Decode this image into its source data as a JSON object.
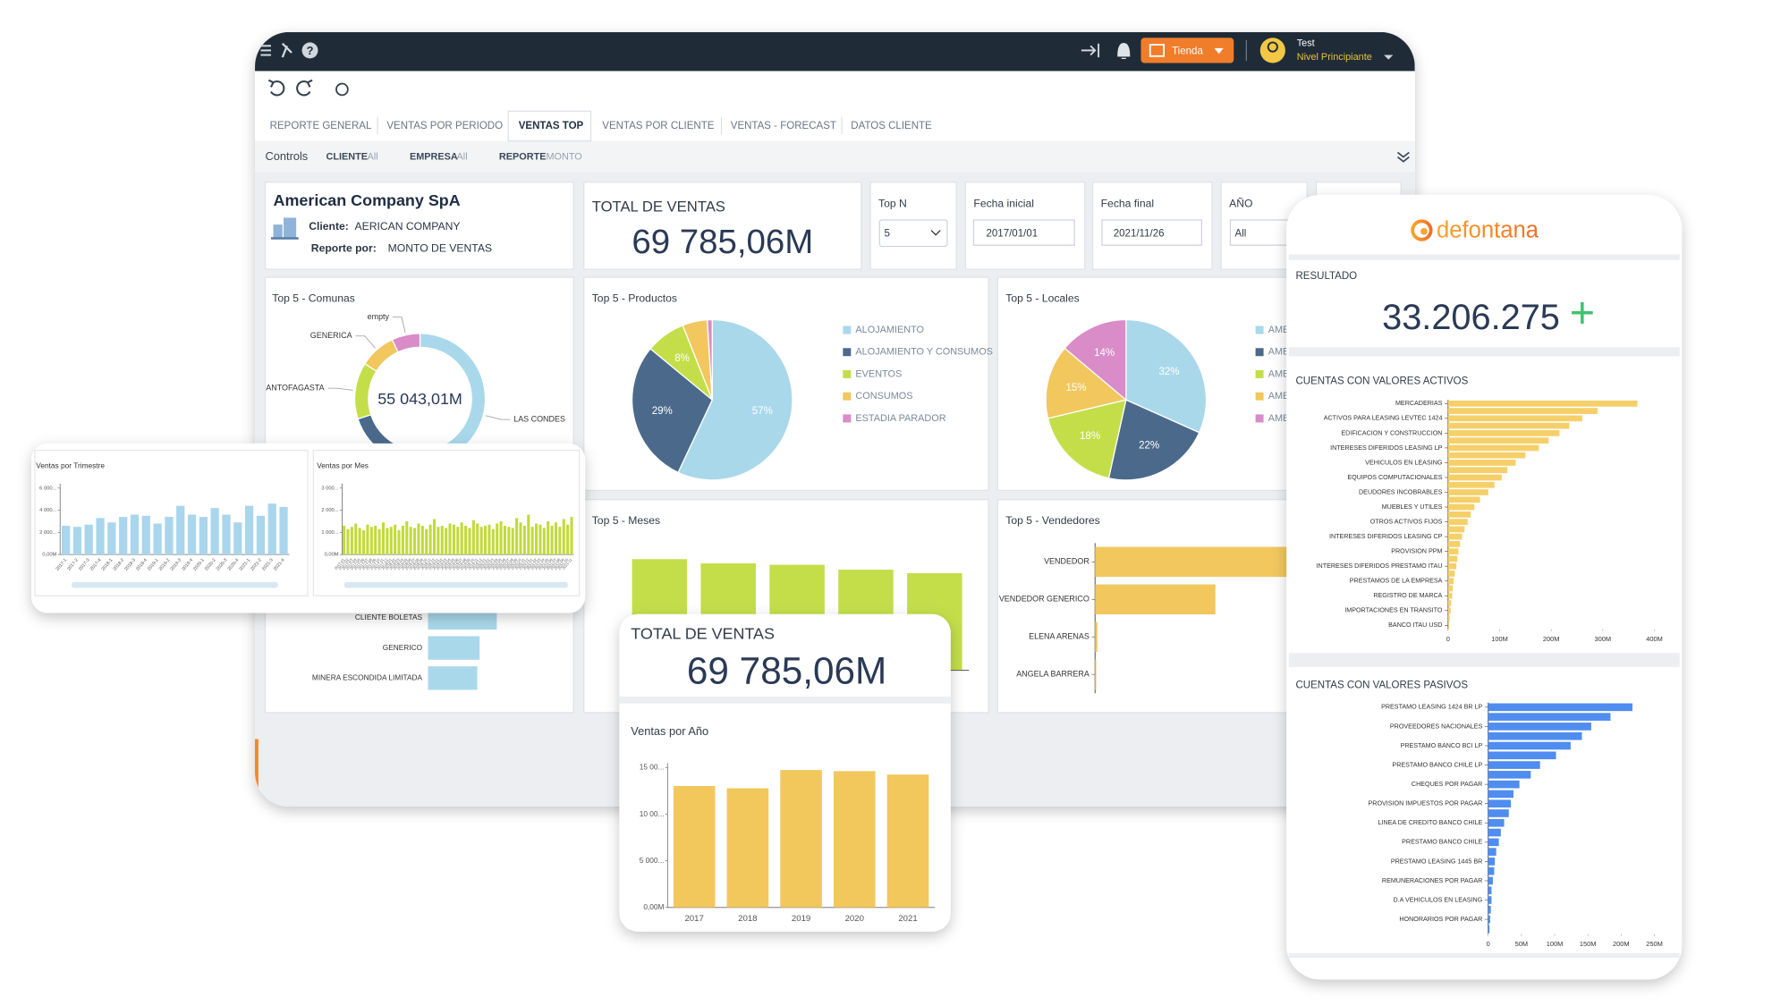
{
  "header": {
    "store_button": "Tienda",
    "user_name": "Test",
    "user_level": "Nivel Principiante"
  },
  "tabs": {
    "items": [
      "REPORTE GENERAL",
      "VENTAS POR PERIODO",
      "VENTAS TOP",
      "VENTAS POR CLIENTE",
      "VENTAS - FORECAST",
      "DATOS CLIENTE"
    ],
    "active": 2
  },
  "controls": {
    "label": "Controls",
    "filters": [
      {
        "name": "CLIENTE",
        "value": "All"
      },
      {
        "name": "EMPRESA",
        "value": "All"
      },
      {
        "name": "REPORTE",
        "value": "MONTO"
      }
    ]
  },
  "company": {
    "name": "American Company SpA",
    "cliente_label": "Cliente:",
    "cliente": "AERICAN COMPANY",
    "reporte_label": "Reporte por:",
    "reporte": "MONTO DE VENTAS"
  },
  "total": {
    "title": "TOTAL DE VENTAS",
    "value": "69 785,06M"
  },
  "selectors": [
    {
      "label": "Top N",
      "value": "5"
    },
    {
      "label": "Fecha inicial",
      "value": "2017/01/01"
    },
    {
      "label": "Fecha final",
      "value": "2021/11/26"
    },
    {
      "label": "AÑO",
      "value": "All"
    }
  ],
  "comunas": {
    "type": "donut",
    "title": "Top 5 - Comunas",
    "center_label": "55 043,01M",
    "categories": [
      "LAS CONDES",
      null,
      "ANTOFAGASTA",
      "GENERICA",
      "empty"
    ],
    "values": [
      58,
      12,
      14,
      9,
      7
    ],
    "colors": [
      "#a9d8eb",
      "#4b6a8b",
      "#c4de4a",
      "#f1c75e",
      "#d98cc8"
    ]
  },
  "productos": {
    "type": "pie",
    "title": "Top 5 - Productos",
    "categories": [
      "ALOJAMIENTO",
      "ALOJAMIENTO Y CONSUMOS",
      "EVENTOS",
      "CONSUMOS",
      "ESTADIA PARADOR"
    ],
    "values": [
      57,
      29,
      8,
      5,
      1
    ],
    "value_labels": [
      "57%",
      "29%",
      "8%",
      null,
      null
    ],
    "colors": [
      "#a9d8eb",
      "#4b6a8b",
      "#c4de4a",
      "#f1c75e",
      "#d98cc8"
    ]
  },
  "locales": {
    "type": "pie",
    "title": "Top 5 - Locales",
    "categories": [
      "AME",
      "AME",
      "AME",
      "AME",
      "AME"
    ],
    "values": [
      32,
      22,
      18,
      15,
      14
    ],
    "value_labels": [
      "32%",
      "22%",
      "18%",
      "15%",
      "14%"
    ],
    "colors": [
      "#a9d8eb",
      "#4b6a8b",
      "#c4de4a",
      "#f1c75e",
      "#d98cc8"
    ]
  },
  "meses": {
    "type": "bar",
    "title": "Top 5 - Meses",
    "values": [
      1580,
      1520,
      1500,
      1430,
      1380
    ],
    "color": "#c4de4a"
  },
  "vendedores": {
    "type": "hbar",
    "title": "Top 5 - Vendedores",
    "categories": [
      "VENDEDOR",
      "VENDEDOR GENERICO",
      "ELENA ARENAS",
      "ANGELA BARRERA"
    ],
    "values": [
      3000,
      1050,
      20,
      10
    ],
    "color": "#f1c75e"
  },
  "clientes": {
    "type": "hbar",
    "categories": [
      "CLIENTE BOLETAS",
      "GENERICO",
      "MINERA ESCONDIDA LIMITADA"
    ],
    "values": [
      60,
      45,
      43
    ],
    "color": "#a9d8eb"
  },
  "trimestre": {
    "type": "bar",
    "title": "Ventas por Trimestre",
    "color": "#a9d6ec",
    "ylim": [
      0,
      6000
    ],
    "yticks": [
      {
        "value": 0,
        "label": "0,00M"
      },
      {
        "value": 2000,
        "label": "2 000..."
      },
      {
        "value": 4000,
        "label": "4 000..."
      },
      {
        "value": 6000,
        "label": "6 000..."
      }
    ],
    "categories": [
      "2017-1",
      "2017-2",
      "2017-3",
      "2017-4",
      "2018-1",
      "2018-2",
      "2018-3",
      "2018-4",
      "2019-1",
      "2019-2",
      "2019-3",
      "2019-4",
      "2020-1",
      "2020-2",
      "2020-3",
      "2020-4",
      "2021-1",
      "2021-2",
      "2021-3",
      "2021-4"
    ],
    "values": [
      2600,
      2500,
      2700,
      3300,
      2900,
      3400,
      3600,
      3500,
      2800,
      3400,
      4400,
      3600,
      3400,
      4200,
      3600,
      2900,
      4400,
      3500,
      4600,
      4300
    ]
  },
  "mes": {
    "type": "bar",
    "title": "Ventas por Mes",
    "color": "#c2da3a",
    "ylim": [
      0,
      3000
    ],
    "yticks": [
      {
        "value": 0,
        "label": "0,00M"
      },
      {
        "value": 1000,
        "label": "1 000..."
      },
      {
        "value": 2000,
        "label": "2 000..."
      },
      {
        "value": 3000,
        "label": "3 000..."
      }
    ],
    "categories": [
      "2017-01",
      "2017-02",
      "2017-03",
      "2017-04",
      "2017-05",
      "2017-06",
      "2017-07",
      "2017-08",
      "2017-09",
      "2017-10",
      "2017-11",
      "2017-12",
      "2018-01",
      "2018-02",
      "2018-03",
      "2018-04",
      "2018-05",
      "2018-06",
      "2018-07",
      "2018-08",
      "2018-09",
      "2018-10",
      "2018-11",
      "2018-12",
      "2019-01",
      "2019-02",
      "2019-03",
      "2019-04",
      "2019-05",
      "2019-06",
      "2019-07",
      "2019-08",
      "2019-09",
      "2019-10",
      "2019-11",
      "2019-12",
      "2020-01",
      "2020-02",
      "2020-03",
      "2020-04",
      "2020-05",
      "2020-06",
      "2020-07",
      "2020-08",
      "2020-09",
      "2020-10",
      "2020-11",
      "2020-12",
      "2021-01",
      "2021-02",
      "2021-03",
      "2021-04",
      "2021-05",
      "2021-06",
      "2021-07",
      "2021-08",
      "2021-09",
      "2021-10",
      "2021-11"
    ],
    "values": [
      1300,
      1150,
      1250,
      1400,
      1200,
      1100,
      1350,
      1250,
      1300,
      1150,
      1450,
      1200,
      1250,
      1350,
      1100,
      1300,
      1500,
      1250,
      1200,
      1400,
      1300,
      1150,
      1350,
      1600,
      1250,
      1300,
      1200,
      1400,
      1350,
      1250,
      1450,
      1300,
      1200,
      1550,
      1400,
      1250,
      1300,
      1350,
      1150,
      1400,
      1500,
      1300,
      1250,
      1200,
      1650,
      1450,
      1300,
      1800,
      1250,
      1400,
      1350,
      1200,
      1500,
      1300,
      1450,
      1250,
      1600,
      1350,
      1700
    ]
  },
  "anio": {
    "type": "bar",
    "total_title": "TOTAL DE VENTAS",
    "total_value": "69 785,06M",
    "title": "Ventas por Año",
    "color": "#f2c75c",
    "ylim": [
      0,
      15000
    ],
    "yticks": [
      {
        "value": 0,
        "label": "0,00M"
      },
      {
        "value": 5000,
        "label": "5 000..."
      },
      {
        "value": 10000,
        "label": "10 00..."
      },
      {
        "value": 15000,
        "label": "15 00..."
      }
    ],
    "categories": [
      "2017",
      "2018",
      "2019",
      "2020",
      "2021"
    ],
    "values": [
      13030,
      12790,
      14750,
      14630,
      14260
    ]
  },
  "phone": {
    "brand": "defontana",
    "result_label": "RESULTADO",
    "result_value": "33.206.275",
    "trend_sign": "+"
  },
  "activos": {
    "type": "hbar",
    "title": "CUENTAS CON VALORES ACTIVOS",
    "color": "#f5d06a",
    "xlim": [
      0,
      400
    ],
    "xticks": [
      0,
      {
        "value": 100,
        "label": "100M"
      },
      {
        "value": 200,
        "label": "200M"
      },
      {
        "value": 300,
        "label": "300M"
      },
      {
        "value": 400,
        "label": "400M"
      }
    ],
    "categories": [
      "MERCADERIAS",
      null,
      "ACTIVOS PARA LEASING LEVTEC 1424",
      null,
      "EDIFICACION Y CONSTRUCCION",
      null,
      "INTERESES DIFERIDOS LEASING LP",
      null,
      "VEHICULOS EN LEASING",
      null,
      "EQUIPOS COMPUTACIONALES",
      null,
      "DEUDORES INCOBRABLES",
      null,
      "MUEBLES Y UTILES",
      null,
      "OTROS ACTIVOS FIJOS",
      null,
      "INTERESES DIFERIDOS LEASING CP",
      null,
      "PROVISION PPM",
      null,
      "INTERESES DIFERIDOS PRESTAMO ITAU",
      null,
      "PRESTAMOS DE LA EMPRESA",
      null,
      "REGISTRO DE MARCA",
      null,
      "IMPORTACIONES EN TRANSITO",
      null,
      "BANCO ITAU USD"
    ],
    "values": [
      367,
      290,
      260,
      235,
      216,
      195,
      176,
      150,
      131,
      115,
      104,
      90,
      78,
      62,
      51,
      44,
      38,
      32,
      27,
      23,
      20,
      18,
      16,
      13,
      11,
      9,
      8,
      6,
      5,
      3,
      2
    ]
  },
  "pasivos": {
    "type": "hbar",
    "title": "CUENTAS CON  VALORES PASIVOS",
    "color": "#4f8df0",
    "xlim": [
      0,
      250
    ],
    "xticks": [
      0,
      {
        "value": 50,
        "label": "50M"
      },
      {
        "value": 100,
        "label": "100M"
      },
      {
        "value": 150,
        "label": "150M"
      },
      {
        "value": 200,
        "label": "200M"
      },
      {
        "value": 250,
        "label": "250M"
      }
    ],
    "categories": [
      "PRESTAMO LEASING 1424 BR LP",
      null,
      "PROVEEDORES NACIONALES",
      null,
      "PRESTAMO BANCO BCI LP",
      null,
      "PRESTAMO BANCO CHILE LP",
      null,
      "CHEQUES POR PAGAR",
      null,
      "PROVISION IMPUESTOS POR PAGAR",
      null,
      "LINEA DE CREDITO BANCO CHILE",
      null,
      "PRESTAMO BANCO CHILE",
      null,
      "PRESTAMO LEASING 1445 BR",
      null,
      "REMUNERACIONES POR PAGAR",
      null,
      "D.A VEHICULOS EN LEASING",
      null,
      "HONORARIOS POR PAGAR",
      null
    ],
    "values": [
      217,
      184,
      155,
      141,
      124,
      102,
      78,
      64,
      47,
      38,
      34,
      31,
      24,
      19,
      16,
      12,
      10,
      9,
      7,
      5,
      5,
      4,
      3,
      2
    ]
  }
}
